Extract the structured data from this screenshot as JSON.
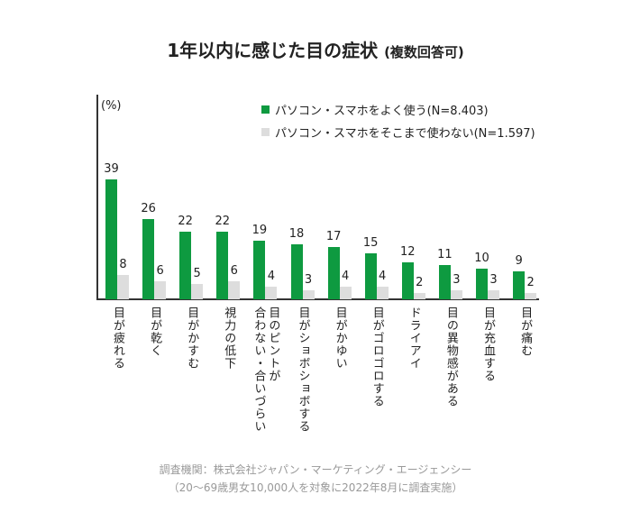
{
  "chart_data": {
    "type": "bar",
    "title": "1年以内に感じた目の症状",
    "subtitle": "(複数回答可)",
    "ylabel": "(%)",
    "xlabel": "",
    "ylim": [
      0,
      60
    ],
    "grid": false,
    "legend_position": "top-right",
    "categories": [
      "目が疲れる",
      "目が乾く",
      "目がかすむ",
      "視力の低下",
      "目のピントが\n合わない・合いづらい",
      "目がショボショボする",
      "目がかゆい",
      "目がゴロゴロする",
      "ドライアイ",
      "目の異物感がある",
      "目が充血する",
      "目が痛む"
    ],
    "series": [
      {
        "name": "パソコン・スマホをよく使う(N=8.403)",
        "color": "#0e9a40",
        "values": [
          39,
          26,
          22,
          22,
          19,
          18,
          17,
          15,
          12,
          11,
          10,
          9
        ]
      },
      {
        "name": "パソコン・スマホをそこまで使わない(N=1.597)",
        "color": "#dddddd",
        "values": [
          8,
          6,
          5,
          6,
          4,
          3,
          4,
          4,
          2,
          3,
          3,
          2
        ]
      }
    ]
  },
  "footer": {
    "source": "調査機関：株式会社ジャパン・マーケティング・エージェンシー",
    "note": "（20〜69歳男女10,000人を対象に2022年8月に調査実施）"
  }
}
